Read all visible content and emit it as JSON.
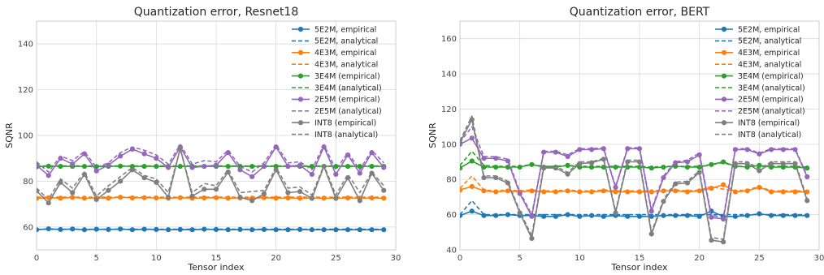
{
  "chart_data": [
    {
      "type": "line",
      "title": "Quantization error, Resnet18",
      "xlabel": "Tensor index",
      "ylabel": "SQNR",
      "xlim": [
        0,
        30
      ],
      "ylim": [
        50,
        150
      ],
      "xticks": [
        0,
        5,
        10,
        15,
        20,
        25,
        30
      ],
      "yticks": [
        60,
        80,
        100,
        120,
        140
      ],
      "grid": true,
      "legend_position": "top-right",
      "x": [
        0,
        1,
        2,
        3,
        4,
        5,
        6,
        7,
        8,
        9,
        10,
        11,
        12,
        13,
        14,
        15,
        16,
        17,
        18,
        19,
        20,
        21,
        22,
        23,
        24,
        25,
        26,
        27,
        28,
        29
      ],
      "series": [
        {
          "name": "5E2M, empirical",
          "style": "solid-marker",
          "color": "#1f77b4",
          "values": [
            58.8,
            59.2,
            58.9,
            59.1,
            58.8,
            59.0,
            58.9,
            59.1,
            58.8,
            59.0,
            58.9,
            58.8,
            58.9,
            58.8,
            59.0,
            58.9,
            58.8,
            58.9,
            58.8,
            58.9,
            58.8,
            58.8,
            58.9,
            58.8,
            58.8,
            58.8,
            58.8,
            58.8,
            58.8,
            58.8
          ]
        },
        {
          "name": "5E2M, analytical",
          "style": "dashed",
          "color": "#1f77b4",
          "values": [
            59.0,
            59.0,
            59.0,
            59.0,
            59.0,
            59.0,
            59.0,
            59.0,
            59.0,
            59.0,
            59.0,
            59.0,
            59.0,
            59.0,
            59.0,
            59.0,
            59.0,
            59.0,
            59.0,
            59.0,
            59.0,
            59.0,
            59.0,
            59.0,
            59.0,
            59.0,
            59.0,
            59.0,
            59.0,
            59.0
          ]
        },
        {
          "name": "4E3M, empirical",
          "style": "solid-marker",
          "color": "#ff7f0e",
          "values": [
            72.5,
            72.8,
            72.6,
            72.9,
            72.6,
            72.7,
            72.6,
            73.0,
            72.7,
            72.8,
            72.7,
            72.6,
            72.8,
            72.6,
            72.7,
            72.8,
            72.6,
            72.7,
            72.6,
            72.8,
            72.6,
            72.7,
            72.6,
            72.7,
            72.6,
            72.6,
            72.7,
            72.6,
            72.7,
            72.6
          ]
        },
        {
          "name": "4E3M, analytical",
          "style": "dashed",
          "color": "#ff7f0e",
          "values": [
            73.0,
            73.0,
            73.0,
            73.0,
            73.0,
            73.0,
            73.0,
            73.0,
            73.0,
            73.0,
            73.0,
            73.0,
            73.0,
            73.0,
            73.0,
            73.0,
            73.0,
            73.0,
            73.0,
            73.0,
            73.0,
            73.0,
            73.0,
            73.0,
            73.0,
            73.0,
            73.0,
            73.0,
            73.0,
            73.0
          ]
        },
        {
          "name": "3E4M (empirical)",
          "style": "solid-marker",
          "color": "#2ca02c",
          "values": [
            86.3,
            86.6,
            86.5,
            86.5,
            86.5,
            86.4,
            86.5,
            86.6,
            86.5,
            86.5,
            86.5,
            86.4,
            86.5,
            86.5,
            86.5,
            86.5,
            86.5,
            86.5,
            86.5,
            86.5,
            86.5,
            86.5,
            86.5,
            86.5,
            86.5,
            86.5,
            86.5,
            86.5,
            86.5,
            86.5
          ]
        },
        {
          "name": "3E4M (analytical)",
          "style": "dashed",
          "color": "#2ca02c",
          "values": [
            86.7,
            86.7,
            86.7,
            86.7,
            86.7,
            86.7,
            86.7,
            86.7,
            86.7,
            86.7,
            86.7,
            86.7,
            86.7,
            86.7,
            86.7,
            86.7,
            86.7,
            86.7,
            86.7,
            86.7,
            86.7,
            86.7,
            86.7,
            86.7,
            86.7,
            86.7,
            86.7,
            86.7,
            86.7,
            86.7
          ]
        },
        {
          "name": "2E5M (empirical)",
          "style": "solid-marker",
          "color": "#9467bd",
          "values": [
            87.0,
            82.5,
            90.0,
            87.5,
            92.0,
            84.5,
            87.0,
            91.0,
            94.0,
            92.0,
            90.0,
            86.0,
            95.0,
            86.0,
            86.5,
            87.0,
            92.5,
            85.0,
            82.0,
            86.5,
            95.0,
            86.5,
            87.0,
            83.0,
            95.0,
            83.0,
            91.5,
            83.5,
            92.5,
            86.0
          ]
        },
        {
          "name": "2E5M (analytical)",
          "style": "dashed",
          "color": "#9467bd",
          "values": [
            88.5,
            84.0,
            91.0,
            89.0,
            93.0,
            86.0,
            88.0,
            92.5,
            95.0,
            93.5,
            91.5,
            87.5,
            96.0,
            87.5,
            89.0,
            88.5,
            93.5,
            86.5,
            84.0,
            88.0,
            96.0,
            88.0,
            88.5,
            85.0,
            96.0,
            85.0,
            92.5,
            85.0,
            93.5,
            88.0
          ]
        },
        {
          "name": "INT8 (empirical)",
          "style": "solid-marker",
          "color": "#7f7f7f",
          "values": [
            75.8,
            70.5,
            79.5,
            75.0,
            83.0,
            72.0,
            76.0,
            80.0,
            85.0,
            81.5,
            79.5,
            73.0,
            94.5,
            73.5,
            76.5,
            76.5,
            84.0,
            73.0,
            71.5,
            74.5,
            85.0,
            75.0,
            75.5,
            72.5,
            86.5,
            72.5,
            81.5,
            71.5,
            83.5,
            76.0
          ]
        },
        {
          "name": "INT8 (analytical)",
          "style": "dashed",
          "color": "#7f7f7f",
          "values": [
            77.0,
            72.0,
            81.0,
            77.0,
            84.0,
            73.5,
            78.0,
            82.0,
            86.0,
            82.5,
            81.0,
            75.0,
            94.0,
            75.0,
            79.0,
            78.0,
            85.0,
            75.0,
            75.5,
            76.0,
            86.0,
            77.0,
            77.5,
            74.0,
            87.0,
            74.0,
            83.0,
            75.0,
            84.0,
            78.0
          ]
        }
      ]
    },
    {
      "type": "line",
      "title": "Quantization error, BERT",
      "xlabel": "Tensor index",
      "ylabel": "SQNR",
      "xlim": [
        0,
        30
      ],
      "ylim": [
        40,
        170
      ],
      "xticks": [
        0,
        5,
        10,
        15,
        20,
        25,
        30
      ],
      "yticks": [
        40,
        60,
        80,
        100,
        120,
        140,
        160
      ],
      "grid": true,
      "legend_position": "top-right",
      "x": [
        0,
        1,
        2,
        3,
        4,
        5,
        6,
        7,
        8,
        9,
        10,
        11,
        12,
        13,
        14,
        15,
        16,
        17,
        18,
        19,
        20,
        21,
        22,
        23,
        24,
        25,
        26,
        27,
        28,
        29
      ],
      "series": [
        {
          "name": "5E2M, empirical",
          "style": "solid-marker",
          "color": "#1f77b4",
          "values": [
            59.5,
            62.0,
            59.5,
            59.5,
            60.0,
            59.5,
            59.5,
            59.0,
            59.0,
            60.0,
            59.0,
            59.5,
            59.0,
            59.5,
            59.0,
            59.0,
            59.0,
            59.5,
            59.5,
            59.5,
            59.0,
            62.0,
            59.0,
            59.0,
            59.5,
            60.5,
            59.5,
            59.5,
            59.5,
            59.5
          ]
        },
        {
          "name": "5E2M, analytical",
          "style": "dashed",
          "color": "#1f77b4",
          "values": [
            60.0,
            68.0,
            60.0,
            60.0,
            60.0,
            60.0,
            60.0,
            60.0,
            60.0,
            60.0,
            60.0,
            60.0,
            60.0,
            60.0,
            60.0,
            60.0,
            60.0,
            60.0,
            60.0,
            60.0,
            60.0,
            60.0,
            60.0,
            60.0,
            60.0,
            60.0,
            60.0,
            60.0,
            60.0,
            60.0
          ]
        },
        {
          "name": "4E3M, empirical",
          "style": "solid-marker",
          "color": "#ff7f0e",
          "values": [
            74.0,
            76.0,
            73.5,
            73.0,
            73.5,
            73.0,
            73.5,
            73.0,
            73.0,
            73.5,
            73.0,
            73.0,
            73.5,
            73.0,
            73.0,
            73.0,
            73.0,
            73.5,
            73.5,
            73.0,
            73.5,
            75.0,
            77.0,
            73.0,
            73.5,
            75.5,
            73.0,
            73.0,
            73.0,
            73.0
          ]
        },
        {
          "name": "4E3M, analytical",
          "style": "dashed",
          "color": "#ff7f0e",
          "values": [
            75.0,
            82.0,
            74.0,
            73.5,
            74.0,
            73.5,
            74.0,
            73.5,
            73.5,
            74.0,
            73.5,
            73.5,
            74.0,
            73.5,
            73.5,
            73.5,
            73.5,
            74.0,
            74.0,
            73.5,
            74.0,
            76.0,
            74.5,
            73.5,
            74.0,
            76.0,
            73.5,
            73.5,
            73.5,
            73.5
          ]
        },
        {
          "name": "3E4M (empirical)",
          "style": "solid-marker",
          "color": "#2ca02c",
          "values": [
            86.5,
            90.5,
            87.0,
            87.0,
            87.0,
            87.0,
            88.5,
            87.0,
            87.0,
            88.0,
            87.0,
            87.0,
            87.0,
            87.0,
            87.0,
            87.0,
            86.5,
            87.0,
            87.5,
            87.0,
            87.0,
            88.5,
            90.0,
            87.5,
            87.0,
            88.0,
            87.0,
            87.0,
            87.0,
            86.5
          ]
        },
        {
          "name": "3E4M (analytical)",
          "style": "dashed",
          "color": "#2ca02c",
          "values": [
            88.0,
            96.0,
            88.0,
            87.5,
            87.5,
            87.5,
            88.5,
            87.5,
            87.5,
            88.0,
            87.5,
            87.5,
            87.5,
            87.5,
            87.5,
            87.5,
            87.0,
            87.5,
            87.5,
            87.5,
            87.5,
            88.5,
            89.5,
            87.5,
            87.5,
            88.0,
            87.5,
            87.5,
            87.5,
            87.0
          ]
        },
        {
          "name": "2E5M (empirical)",
          "style": "solid-marker",
          "color": "#9467bd",
          "values": [
            100.0,
            103.5,
            92.0,
            92.0,
            90.5,
            72.0,
            59.0,
            95.5,
            95.5,
            93.0,
            97.0,
            97.0,
            97.5,
            75.5,
            97.5,
            97.5,
            62.0,
            81.0,
            89.5,
            90.0,
            94.0,
            58.5,
            57.5,
            97.0,
            97.0,
            94.5,
            97.0,
            97.0,
            97.0,
            81.5
          ]
        },
        {
          "name": "2E5M (analytical)",
          "style": "dashed",
          "color": "#9467bd",
          "values": [
            101.0,
            110.0,
            93.0,
            93.0,
            91.5,
            73.0,
            60.0,
            96.0,
            96.0,
            94.0,
            97.5,
            97.5,
            98.0,
            76.0,
            98.0,
            98.0,
            63.0,
            82.0,
            90.0,
            91.0,
            95.0,
            59.5,
            58.5,
            97.5,
            97.5,
            95.0,
            97.5,
            97.5,
            97.5,
            82.0
          ]
        },
        {
          "name": "INT8 (empirical)",
          "style": "solid-marker",
          "color": "#7f7f7f",
          "values": [
            101.0,
            114.0,
            81.0,
            81.0,
            78.0,
            61.0,
            46.5,
            86.5,
            86.5,
            83.0,
            89.0,
            89.5,
            91.5,
            61.0,
            90.0,
            90.0,
            49.0,
            67.5,
            77.5,
            78.0,
            84.0,
            45.5,
            44.5,
            89.0,
            89.0,
            85.0,
            89.0,
            89.0,
            89.0,
            68.0
          ]
        },
        {
          "name": "INT8 (analytical)",
          "style": "dashed",
          "color": "#7f7f7f",
          "values": [
            102.0,
            116.0,
            82.0,
            82.0,
            79.0,
            62.0,
            48.0,
            87.5,
            87.5,
            84.0,
            90.0,
            90.0,
            92.0,
            62.0,
            91.0,
            91.0,
            50.0,
            68.5,
            78.5,
            79.0,
            85.0,
            47.0,
            46.0,
            90.0,
            90.0,
            86.0,
            90.0,
            90.0,
            90.0,
            69.0
          ]
        }
      ]
    }
  ]
}
